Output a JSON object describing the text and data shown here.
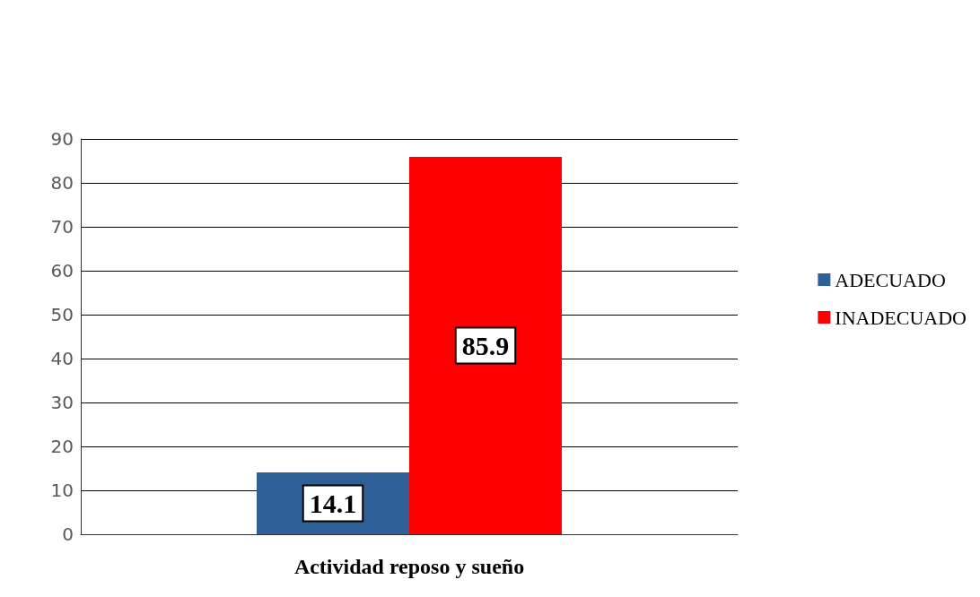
{
  "chart_data": {
    "type": "bar",
    "categories": [
      "Actividad reposo y sueño"
    ],
    "series": [
      {
        "name": "ADECUADO",
        "color": "#2f5f97",
        "values": [
          14.1
        ]
      },
      {
        "name": "INADECUADO",
        "color": "#ff0000",
        "values": [
          85.9
        ]
      }
    ],
    "ylim": [
      0,
      90
    ],
    "yticks": [
      0,
      10,
      20,
      30,
      40,
      50,
      60,
      70,
      80,
      90
    ],
    "grid": "y",
    "legend": "right",
    "data_labels": true
  }
}
